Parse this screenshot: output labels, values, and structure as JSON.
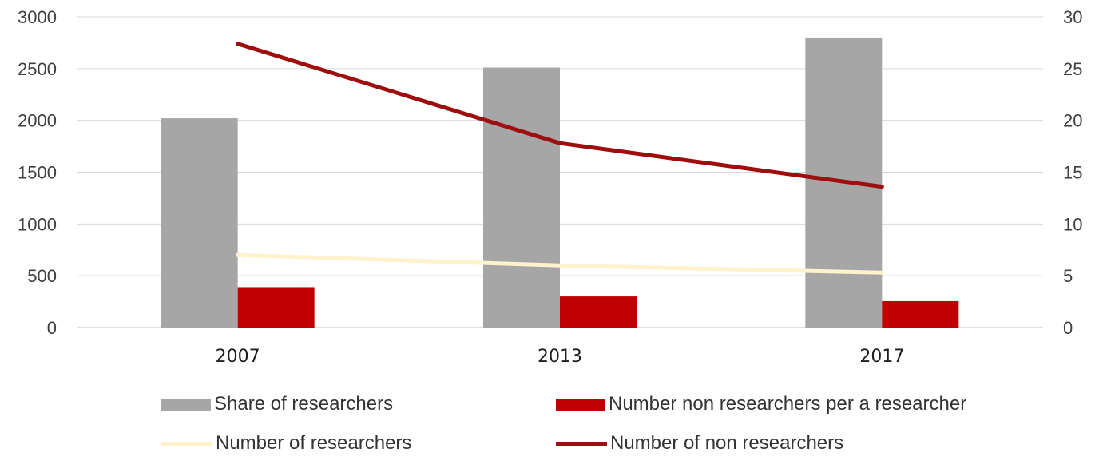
{
  "chart_data": {
    "type": "bar",
    "categories": [
      "2007",
      "2013",
      "2017"
    ],
    "ylim_left": [
      0,
      3000
    ],
    "yticks_left": [
      "0",
      "500",
      "1000",
      "1500",
      "2000",
      "2500",
      "3000"
    ],
    "ylim_right": [
      0,
      30
    ],
    "yticks_right": [
      "0",
      "5",
      "10",
      "15",
      "20",
      "25",
      "30"
    ],
    "grid": true,
    "legend_position": "bottom",
    "series": [
      {
        "name": "Share of researchers",
        "kind": "bar",
        "axis": "left",
        "color": "#A6A6A6",
        "values": [
          2020,
          2510,
          2800
        ]
      },
      {
        "name": "Number non researchers per a researcher",
        "kind": "bar",
        "axis": "left",
        "color": "#C00000",
        "values": [
          390,
          300,
          255
        ]
      },
      {
        "name": "Number of researchers",
        "kind": "line",
        "axis": "right",
        "color": "#FFF2CC",
        "values": [
          7.0,
          6.0,
          5.3
        ]
      },
      {
        "name": "Number of non researchers",
        "kind": "line",
        "axis": "right",
        "color": "#9E0E0E",
        "values": [
          27.4,
          17.8,
          13.6
        ]
      }
    ]
  }
}
